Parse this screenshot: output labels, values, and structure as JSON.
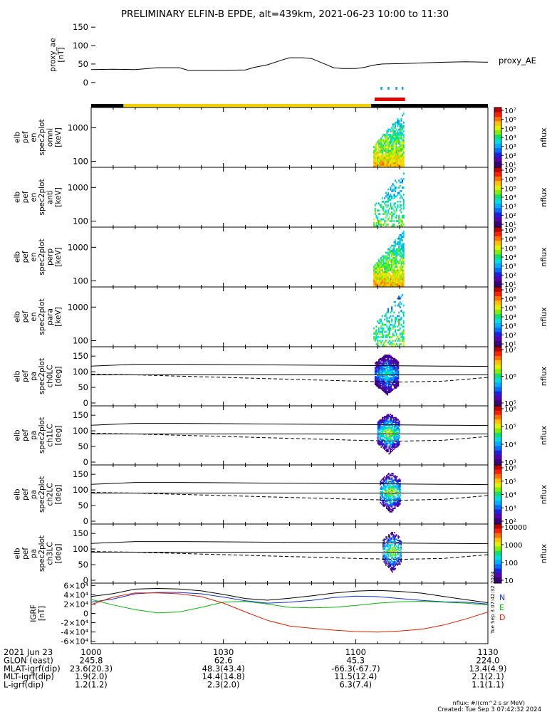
{
  "title": "PRELIMINARY ELFIN-B EPDE, alt=439km, 2021-06-23 10:00 to 11:30",
  "footer": {
    "units": "nflux: #/(cm^2 s sr MeV)",
    "created": "Created: Tue Sep  3 07:42:32 2024",
    "side_stamp": "Tue Sep  3 07:42:32 2024"
  },
  "time_axis": {
    "tick_labels": [
      "1000",
      "1030",
      "1100",
      "1130"
    ],
    "tick_minutes": [
      0,
      30,
      60,
      90
    ],
    "range_minutes": [
      0,
      90
    ]
  },
  "ephemeris": {
    "rows": [
      {
        "label": "2021 Jun 23",
        "values": [
          "1000",
          "",
          "",
          ""
        ]
      },
      {
        "label": "GLON (east)",
        "values": [
          "245.8",
          "62.6",
          "45.3",
          "224.0"
        ]
      },
      {
        "label": "MLAT-igrf(dip)",
        "values": [
          "23.6(20.3)",
          "48.3(43.4)",
          "-66.3(-67.7)",
          "13.4(4.9)"
        ]
      },
      {
        "label": "MLT-igrf(dip)",
        "values": [
          "1.9(2.0)",
          "14.4(14.8)",
          "11.5(12.4)",
          "2.1(2.1)"
        ]
      },
      {
        "label": "L-igrf(dip)",
        "values": [
          "1.2(1.2)",
          "2.3(2.0)",
          "6.3(7.4)",
          "1.1(1.1)"
        ]
      }
    ]
  },
  "ae_panel": {
    "ylabel_lines": [
      "proxy_ae",
      "[nT]"
    ],
    "yticks": [
      "0",
      "50",
      "100",
      "150"
    ],
    "ylim": [
      -10,
      160
    ],
    "legend": "proxy_AE"
  },
  "bars": {
    "sunlit_color": "#f5d000",
    "eclipse_color": "#000000",
    "science_color": "#e00000",
    "tick_color": "#1f9be0"
  },
  "energy_panels": [
    {
      "lines": [
        "elb",
        "pef",
        "en",
        "spec2plot",
        "omni",
        "[keV]"
      ],
      "yticks": [
        "100",
        "1000"
      ],
      "zlabel": "nflux",
      "zticks": [
        "10¹",
        "10²",
        "10³",
        "10⁴",
        "10⁵",
        "10⁶",
        "10⁷"
      ]
    },
    {
      "lines": [
        "elb",
        "pef",
        "en",
        "spec2plot",
        "anti",
        "[keV]"
      ],
      "yticks": [
        "100",
        "1000"
      ],
      "zlabel": "nflux",
      "zticks": [
        "10¹",
        "10²",
        "10³",
        "10⁴",
        "10⁵",
        "10⁶",
        "10⁷"
      ]
    },
    {
      "lines": [
        "elb",
        "pef",
        "en",
        "spec2plot",
        "perp",
        "[keV]"
      ],
      "yticks": [
        "100",
        "1000"
      ],
      "zlabel": "nflux",
      "zticks": [
        "10¹",
        "10²",
        "10³",
        "10⁴",
        "10⁵",
        "10⁶",
        "10⁷"
      ]
    },
    {
      "lines": [
        "elb",
        "pef",
        "en",
        "spec2plot",
        "para",
        "[keV]"
      ],
      "yticks": [
        "100",
        "1000"
      ],
      "zlabel": "nflux",
      "zticks": [
        "10¹",
        "10²",
        "10³",
        "10⁴",
        "10⁵",
        "10⁶",
        "10⁷"
      ]
    }
  ],
  "pa_panels": [
    {
      "lines": [
        "elb",
        "pef",
        "pa",
        "spec2plot",
        "ch0LC",
        "[deg]"
      ],
      "yticks": [
        "0",
        "50",
        "100",
        "150"
      ],
      "zlabel": "nflux",
      "zticks": [
        "10⁵",
        "10⁶",
        "10⁷"
      ]
    },
    {
      "lines": [
        "elb",
        "pef",
        "pa",
        "spec2plot",
        "ch1LC",
        "[deg]"
      ],
      "yticks": [
        "0",
        "50",
        "100",
        "150"
      ],
      "zlabel": "nflux",
      "zticks": [
        "10³",
        "10⁴",
        "10⁵",
        "10⁶"
      ]
    },
    {
      "lines": [
        "elb",
        "pef",
        "pa",
        "spec2plot",
        "ch2LC",
        "[deg]"
      ],
      "yticks": [
        "0",
        "50",
        "100",
        "150"
      ],
      "zlabel": "nflux",
      "zticks": [
        "10²",
        "10³",
        "10⁴",
        "10⁵",
        "10⁶"
      ]
    },
    {
      "lines": [
        "elb",
        "pef",
        "pa",
        "spec2plot",
        "ch3LC",
        "[deg]"
      ],
      "yticks": [
        "0",
        "50",
        "100",
        "150"
      ],
      "zlabel": "nflux",
      "zticks": [
        "10",
        "100",
        "1000",
        "10000"
      ]
    }
  ],
  "igrf_panel": {
    "ylabel_lines": [
      "IGRF",
      "[nT]"
    ],
    "yticks": [
      "-6×10⁴",
      "-4×10⁴",
      "-2×10⁴",
      "0",
      "2×10⁴",
      "4×10⁴",
      "6×10⁴"
    ],
    "ylim": [
      -65000,
      65000
    ],
    "legend": [
      {
        "label": "N",
        "color": "#1030d0"
      },
      {
        "label": "E",
        "color": "#10b010"
      },
      {
        "label": "D",
        "color": "#e02000"
      }
    ]
  },
  "chart_data": {
    "type": "line",
    "x_units": "minutes after 2021-06-23 10:00",
    "proxy_ae": {
      "x": [
        0,
        5,
        10,
        15,
        20,
        22,
        30,
        35,
        37,
        40,
        43,
        45,
        48,
        50,
        53,
        55,
        57,
        60,
        62,
        64,
        66,
        70,
        75,
        80,
        85,
        90
      ],
      "y": [
        35,
        36,
        35,
        40,
        40,
        33,
        33,
        34,
        41,
        48,
        60,
        67,
        67,
        65,
        50,
        40,
        38,
        38,
        41,
        47,
        50,
        51,
        53,
        55,
        56,
        55
      ]
    },
    "pa_lc_upper": {
      "x": [
        0,
        10,
        20,
        30,
        40,
        50,
        60,
        70,
        80,
        90
      ],
      "y": [
        118,
        124,
        124,
        123,
        122,
        121,
        120,
        119,
        118,
        117
      ]
    },
    "pa_lc_lower": {
      "x": [
        0,
        10,
        20,
        30,
        40,
        50,
        60,
        70,
        80,
        90
      ],
      "y": [
        92,
        90,
        86,
        82,
        78,
        74,
        70,
        67,
        70,
        82
      ]
    },
    "pa_horizontal": 90,
    "igrf": {
      "x": [
        0,
        5,
        10,
        15,
        20,
        25,
        30,
        35,
        40,
        45,
        50,
        55,
        60,
        65,
        70,
        75,
        80,
        85,
        90
      ],
      "series": [
        {
          "name": "N",
          "values": [
            24000,
            31000,
            42000,
            45000,
            45000,
            42000,
            35000,
            27000,
            22000,
            24000,
            28000,
            34000,
            37000,
            36000,
            32000,
            28000,
            25000,
            24000,
            20000
          ]
        },
        {
          "name": "E",
          "values": [
            30000,
            18000,
            8000,
            1000,
            3000,
            13000,
            24000,
            26000,
            20000,
            13000,
            12000,
            13000,
            17000,
            22000,
            25000,
            26000,
            24000,
            22000,
            18000
          ]
        },
        {
          "name": "D",
          "values": [
            19000,
            35000,
            44000,
            44000,
            42000,
            36000,
            22000,
            3000,
            -15000,
            -27000,
            -32000,
            -36000,
            -39000,
            -40000,
            -38000,
            -34000,
            -25000,
            -12000,
            3000
          ]
        }
      ]
    },
    "spectrogram_window_minutes": [
      64,
      71
    ]
  }
}
